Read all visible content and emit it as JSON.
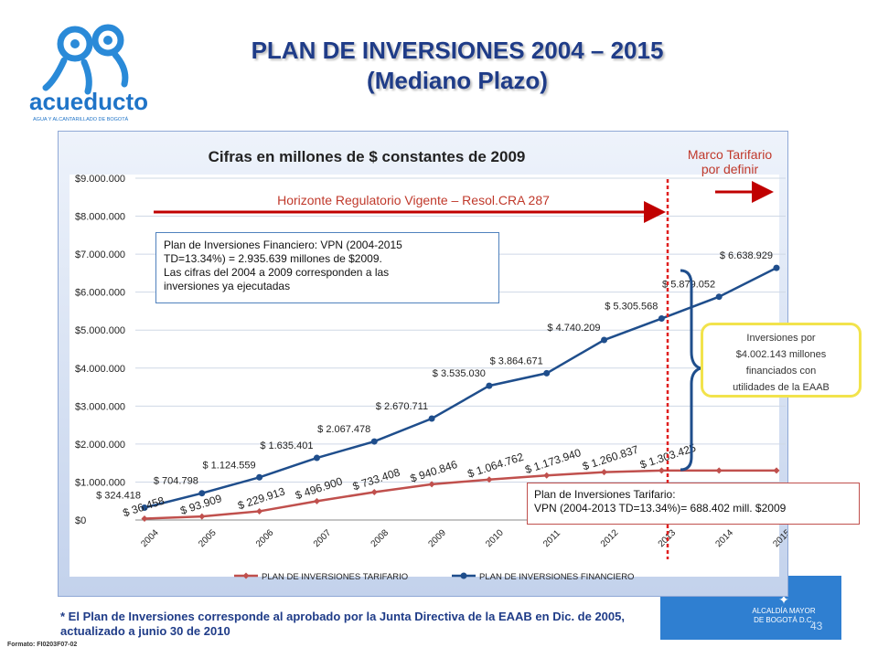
{
  "header": {
    "title_line1": "PLAN DE INVERSIONES 2004 – 2015",
    "title_line2": "(Mediano Plazo)",
    "logo_text": "acueducto",
    "logo_subtext": "AGUA Y ALCANTARILLADO DE BOGOTÁ"
  },
  "annotations": {
    "marco_line1": "Marco Tarifario",
    "marco_line2": "por definir",
    "horizonte": "Horizonte Regulatorio Vigente – Resol.CRA 287",
    "fin_box_line1": "Plan de Inversiones Financiero: VPN (2004-2015",
    "fin_box_line2": "TD=13.34%) = 2.935.639 millones de $2009.",
    "fin_box_line3": "Las cifras del 2004 a 2009 corresponden a las",
    "fin_box_line4": "inversiones ya ejecutadas",
    "tar_box_line1": "Plan de Inversiones Tarifario:",
    "tar_box_line2": "VPN (2004-2013 TD=13.34%)= 688.402 mill. $2009",
    "inv_line1": "Inversiones por",
    "inv_line2": "$4.002.143  millones",
    "inv_line3": "financiados con",
    "inv_line4": "utilidades de la EAAB"
  },
  "footer": {
    "footnote_line1": "* El Plan de Inversiones corresponde al aprobado por la Junta Directiva de la EAAB en Dic. de 2005,",
    "footnote_line2": "actualizado a junio 30 de 2010",
    "form_code": "Formato: FI0203F07-02",
    "page_number": "43",
    "corner_logo_text": "ALCALDÍA MAYOR DE BOGOTÁ D.C."
  },
  "chart_data": {
    "type": "line",
    "title": "Cifras en millones de $ constantes de 2009",
    "categories": [
      "2004",
      "2005",
      "2006",
      "2007",
      "2008",
      "2009",
      "2010",
      "2011",
      "2012",
      "2013",
      "2014",
      "2015"
    ],
    "ylim": [
      0,
      9000000
    ],
    "yticks": [
      0,
      1000000,
      2000000,
      3000000,
      4000000,
      5000000,
      6000000,
      7000000,
      8000000,
      9000000
    ],
    "ytick_labels": [
      "$0",
      "$1.000.000",
      "$2.000.000",
      "$3.000.000",
      "$4.000.000",
      "$5.000.000",
      "$6.000.000",
      "$7.000.000",
      "$8.000.000",
      "$9.000.000"
    ],
    "legend_position": "bottom",
    "series": [
      {
        "name": "PLAN DE INVERSIONES TARIFARIO",
        "color": "#c0504d",
        "values": [
          36458,
          93909,
          229913,
          496900,
          733408,
          940846,
          1064762,
          1173940,
          1260837,
          1303425,
          1303425,
          1303425
        ],
        "labels": [
          "$ 36.458",
          "$ 93.909",
          "$ 229.913",
          "$ 496.900",
          "$ 733.408",
          "$ 940.846",
          "$ 1.064.762",
          "$ 1.173.940",
          "$ 1.260.837",
          "$ 1.303.425",
          "",
          ""
        ]
      },
      {
        "name": "PLAN DE INVERSIONES FINANCIERO",
        "color": "#1f4e8c",
        "values": [
          324418,
          704798,
          1124559,
          1635401,
          2067478,
          2670711,
          3535030,
          3864671,
          4740209,
          5305568,
          5879052,
          6638929
        ],
        "labels": [
          "$ 324.418",
          "$ 704.798",
          "$ 1.124.559",
          "$ 1.635.401",
          "$ 2.067.478",
          "$ 2.670.711",
          "$ 3.535.030",
          "$ 3.864.671",
          "$ 4.740.209",
          "$ 5.305.568",
          "$ 5.879.052",
          "$ 6.638.929"
        ]
      }
    ]
  }
}
